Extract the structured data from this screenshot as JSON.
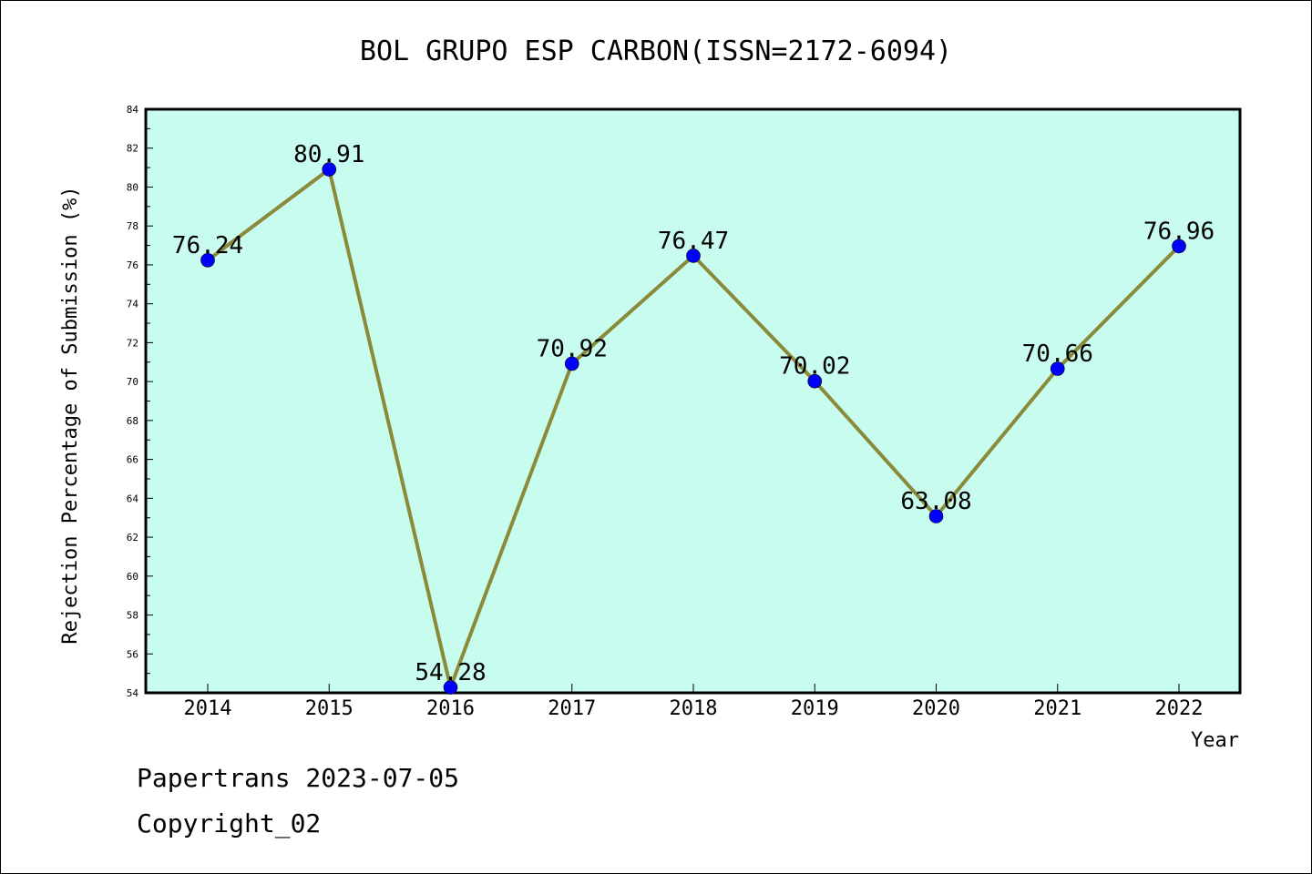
{
  "chart_data": {
    "type": "line",
    "title": "BOL GRUPO ESP CARBON(ISSN=2172-6094)",
    "xlabel": "Year",
    "ylabel": "Rejection Percentage of Submission (%)",
    "categories": [
      "2014",
      "2015",
      "2016",
      "2017",
      "2018",
      "2019",
      "2020",
      "2021",
      "2022"
    ],
    "values": [
      76.24,
      80.91,
      54.28,
      70.92,
      76.47,
      70.02,
      63.08,
      70.66,
      76.96
    ],
    "data_labels": [
      "76.24",
      "80.91",
      "54.28",
      "70.92",
      "76.47",
      "70.02",
      "63.08",
      "70.66",
      "76.96"
    ],
    "ylim": [
      54,
      84
    ],
    "yticks": [
      54,
      56,
      58,
      60,
      62,
      64,
      66,
      68,
      70,
      72,
      74,
      76,
      78,
      80,
      82,
      84
    ],
    "grid": false,
    "colors": {
      "plot_background": "#c8fcee",
      "line": "#8b8a3a",
      "marker": "#0000ff"
    }
  },
  "footer": {
    "line1": "Papertrans 2023-07-05",
    "line2": "Copyright_02"
  }
}
